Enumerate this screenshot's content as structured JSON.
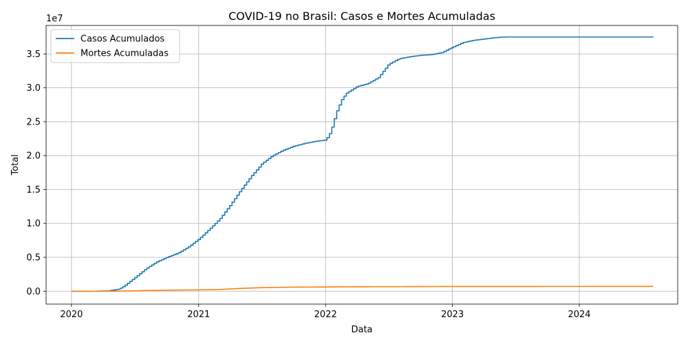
{
  "chart_data": {
    "type": "line",
    "title": "COVID-19 no Brasil: Casos e Mortes Acumuladas",
    "xlabel": "Data",
    "ylabel": "Total",
    "y_offset_text": "1e7",
    "x_tick_labels": [
      "2020",
      "2021",
      "2022",
      "2023",
      "2024"
    ],
    "y_tick_labels": [
      "0.0",
      "0.5",
      "1.0",
      "1.5",
      "2.0",
      "2.5",
      "3.0",
      "3.5"
    ],
    "y_ticks": [
      0,
      5000000,
      10000000,
      15000000,
      20000000,
      25000000,
      30000000,
      35000000
    ],
    "x_ticks": [
      "2020-01-01",
      "2021-01-01",
      "2022-01-01",
      "2023-01-01",
      "2024-01-01"
    ],
    "xlim": [
      "2019-10-20",
      "2024-10-10"
    ],
    "ylim": [
      -1900000,
      39200000
    ],
    "grid": true,
    "legend_position": "top-left",
    "colors": {
      "cases": "#1f77b4",
      "deaths": "#ff7f0e"
    },
    "series": [
      {
        "name": "Casos Acumulados",
        "color": "#1f77b4",
        "x": [
          "2020-01-01",
          "2020-03-01",
          "2020-04-15",
          "2020-05-15",
          "2020-06-01",
          "2020-07-01",
          "2020-08-01",
          "2020-09-01",
          "2020-10-01",
          "2020-11-01",
          "2020-12-01",
          "2021-01-01",
          "2021-02-01",
          "2021-03-01",
          "2021-04-01",
          "2021-05-01",
          "2021-06-01",
          "2021-07-01",
          "2021-08-01",
          "2021-09-01",
          "2021-10-01",
          "2021-11-01",
          "2021-12-01",
          "2022-01-01",
          "2022-01-15",
          "2022-02-01",
          "2022-02-15",
          "2022-03-01",
          "2022-04-01",
          "2022-05-01",
          "2022-06-01",
          "2022-07-01",
          "2022-08-01",
          "2022-09-01",
          "2022-10-01",
          "2022-11-01",
          "2022-12-01",
          "2023-01-01",
          "2023-02-01",
          "2023-03-01",
          "2023-04-01",
          "2023-05-01",
          "2023-06-01",
          "2024-08-01"
        ],
        "y": [
          0,
          0,
          50000,
          300000,
          800000,
          2000000,
          3300000,
          4300000,
          5000000,
          5600000,
          6500000,
          7700000,
          9200000,
          10600000,
          12700000,
          14900000,
          17000000,
          18800000,
          20000000,
          20800000,
          21400000,
          21800000,
          22100000,
          22300000,
          23500000,
          26500000,
          28200000,
          29200000,
          30200000,
          30600000,
          31500000,
          33500000,
          34300000,
          34600000,
          34800000,
          34900000,
          35200000,
          36000000,
          36700000,
          37000000,
          37200000,
          37400000,
          37500000,
          37500000
        ]
      },
      {
        "name": "Mortes Acumuladas",
        "color": "#ff7f0e",
        "x": [
          "2020-01-01",
          "2020-03-15",
          "2020-05-01",
          "2020-06-01",
          "2020-08-01",
          "2020-10-01",
          "2021-01-01",
          "2021-03-01",
          "2021-05-01",
          "2021-07-01",
          "2021-10-01",
          "2022-01-01",
          "2022-03-01",
          "2022-07-01",
          "2023-01-01",
          "2024-08-01"
        ],
        "y": [
          0,
          0,
          7000,
          30000,
          100000,
          150000,
          200000,
          260000,
          420000,
          530000,
          600000,
          620000,
          650000,
          670000,
          695000,
          705000
        ]
      }
    ]
  }
}
